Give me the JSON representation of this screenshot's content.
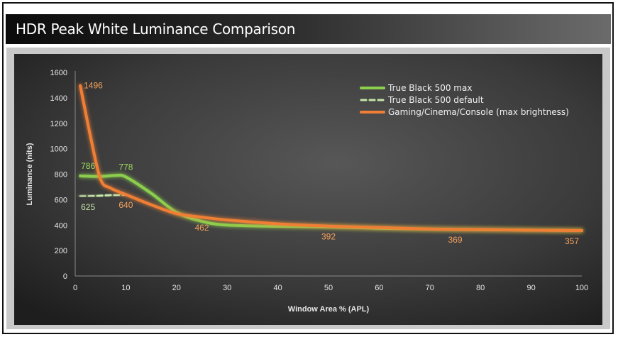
{
  "header": {
    "title": "HDR Peak White Luminance Comparison"
  },
  "colors": {
    "max": "#8ccf4d",
    "default": "#c6e5a8",
    "gaming": "#f07f35"
  },
  "chart_data": {
    "type": "line",
    "title": "HDR Peak White Luminance Comparison",
    "xlabel": "Window Area % (APL)",
    "ylabel": "Luminance (nits)",
    "xlim": [
      0,
      100
    ],
    "ylim": [
      0,
      1600
    ],
    "xticks": [
      "0",
      "10",
      "20",
      "30",
      "40",
      "50",
      "60",
      "70",
      "80",
      "90",
      "100"
    ],
    "yticks": [
      "0",
      "200",
      "400",
      "600",
      "800",
      "1000",
      "1200",
      "1400",
      "1600"
    ],
    "grid": false,
    "legend_position": "top-right",
    "series": [
      {
        "name": "True Black 500 max",
        "style": "solid",
        "x": [
          1,
          5,
          8,
          10,
          15,
          20,
          25,
          30,
          40,
          50,
          60,
          70,
          80,
          90,
          100
        ],
        "y": [
          786,
          782,
          790,
          778,
          650,
          500,
          430,
          400,
          390,
          385,
          375,
          368,
          364,
          360,
          357
        ]
      },
      {
        "name": "True Black 500 default",
        "style": "dashed",
        "x": [
          1,
          4,
          7,
          10
        ],
        "y": [
          625,
          628,
          636,
          640
        ]
      },
      {
        "name": "Gaming/Cinema/Console (max brightness)",
        "style": "solid",
        "x": [
          1,
          3,
          5,
          7,
          10,
          15,
          20,
          25,
          30,
          40,
          50,
          60,
          70,
          80,
          90,
          100
        ],
        "y": [
          1496,
          1100,
          760,
          690,
          640,
          560,
          490,
          462,
          440,
          410,
          392,
          380,
          369,
          365,
          360,
          357
        ]
      }
    ],
    "data_labels": [
      {
        "series": 0,
        "x": 1,
        "y": 786,
        "text": "786",
        "pos": "above"
      },
      {
        "series": 0,
        "x": 10,
        "y": 778,
        "text": "778",
        "pos": "above"
      },
      {
        "series": 1,
        "x": 1,
        "y": 625,
        "text": "625",
        "pos": "below"
      },
      {
        "series": 2,
        "x": 1,
        "y": 1496,
        "text": "1496",
        "pos": "right"
      },
      {
        "series": 2,
        "x": 10,
        "y": 640,
        "text": "640",
        "pos": "below"
      },
      {
        "series": 2,
        "x": 25,
        "y": 462,
        "text": "462",
        "pos": "below"
      },
      {
        "series": 2,
        "x": 50,
        "y": 392,
        "text": "392",
        "pos": "below"
      },
      {
        "series": 2,
        "x": 75,
        "y": 369,
        "text": "369",
        "pos": "below"
      },
      {
        "series": 2,
        "x": 100,
        "y": 357,
        "text": "357",
        "pos": "below"
      }
    ]
  }
}
